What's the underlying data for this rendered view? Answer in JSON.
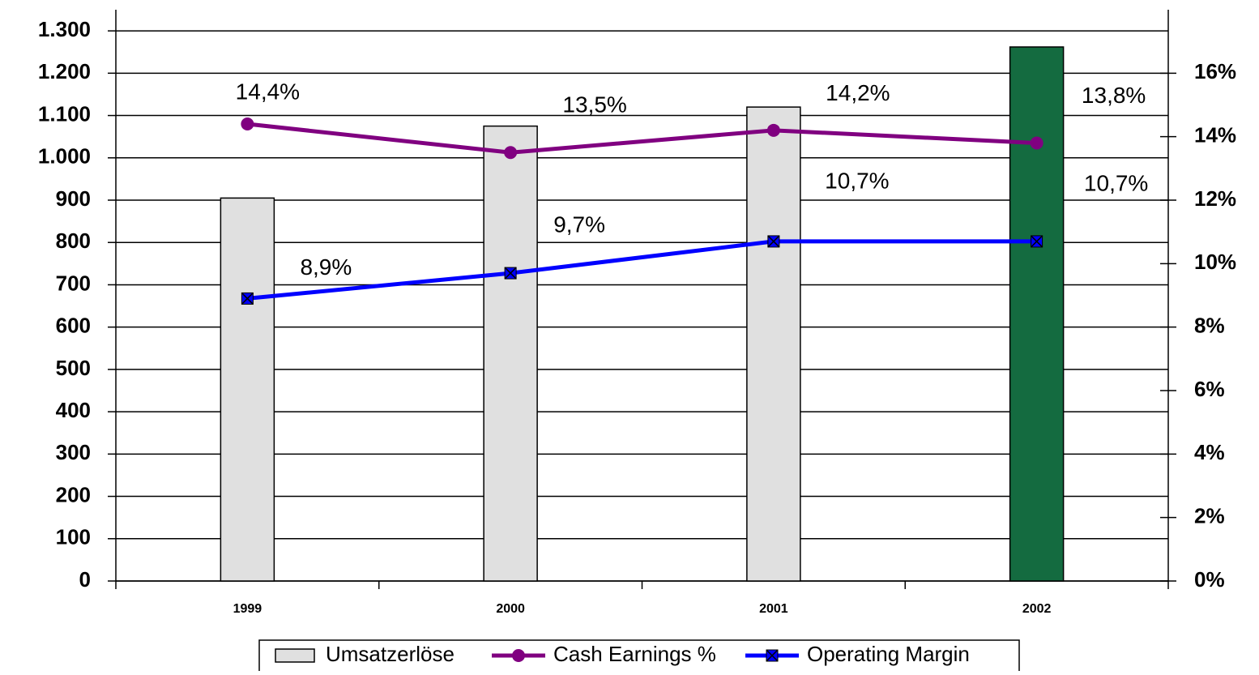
{
  "chart_data": {
    "type": "bar",
    "categories": [
      "1999",
      "2000",
      "2001",
      "2002"
    ],
    "series": [
      {
        "name": "Umsatzerlöse",
        "type": "bar",
        "color": "#e0e0e0",
        "colors": [
          "#e0e0e0",
          "#e0e0e0",
          "#e0e0e0",
          "#146b40"
        ],
        "values": [
          905,
          1075,
          1120,
          1262
        ]
      },
      {
        "name": "Cash Earnings %",
        "type": "line",
        "axis": "y2",
        "color": "#800080",
        "marker": "circle",
        "values": [
          14.4,
          13.5,
          14.2,
          13.8
        ],
        "value_labels": [
          "14,4%",
          "13,5%",
          "14,2%",
          "13,8%"
        ]
      },
      {
        "name": "Operating Margin",
        "type": "line",
        "axis": "y2",
        "color": "#0000ff",
        "marker": "square-x",
        "values": [
          8.9,
          9.7,
          10.7,
          10.7
        ],
        "value_labels": [
          "8,9%",
          "9,7%",
          "10,7%",
          "10,7%"
        ]
      }
    ],
    "ylim": [
      0,
      1350
    ],
    "yticks": [
      0,
      100,
      200,
      300,
      400,
      500,
      600,
      700,
      800,
      900,
      {
        "value": 1000,
        "label": "1.000"
      },
      {
        "value": 1100,
        "label": "1.100"
      },
      {
        "value": 1200,
        "label": "1.200"
      },
      {
        "value": 1300,
        "label": "1.300"
      }
    ],
    "y2lim": [
      0,
      18
    ],
    "y2ticks": [
      {
        "value": 0,
        "label": "0%"
      },
      {
        "value": 2,
        "label": "2%"
      },
      {
        "value": 4,
        "label": "4%"
      },
      {
        "value": 6,
        "label": "6%"
      },
      {
        "value": 8,
        "label": "8%"
      },
      {
        "value": 10,
        "label": "10%"
      },
      {
        "value": 12,
        "label": "12%"
      },
      {
        "value": 14,
        "label": "14%"
      },
      {
        "value": 16,
        "label": "16%"
      }
    ],
    "grid": true,
    "legend": "bottom"
  }
}
